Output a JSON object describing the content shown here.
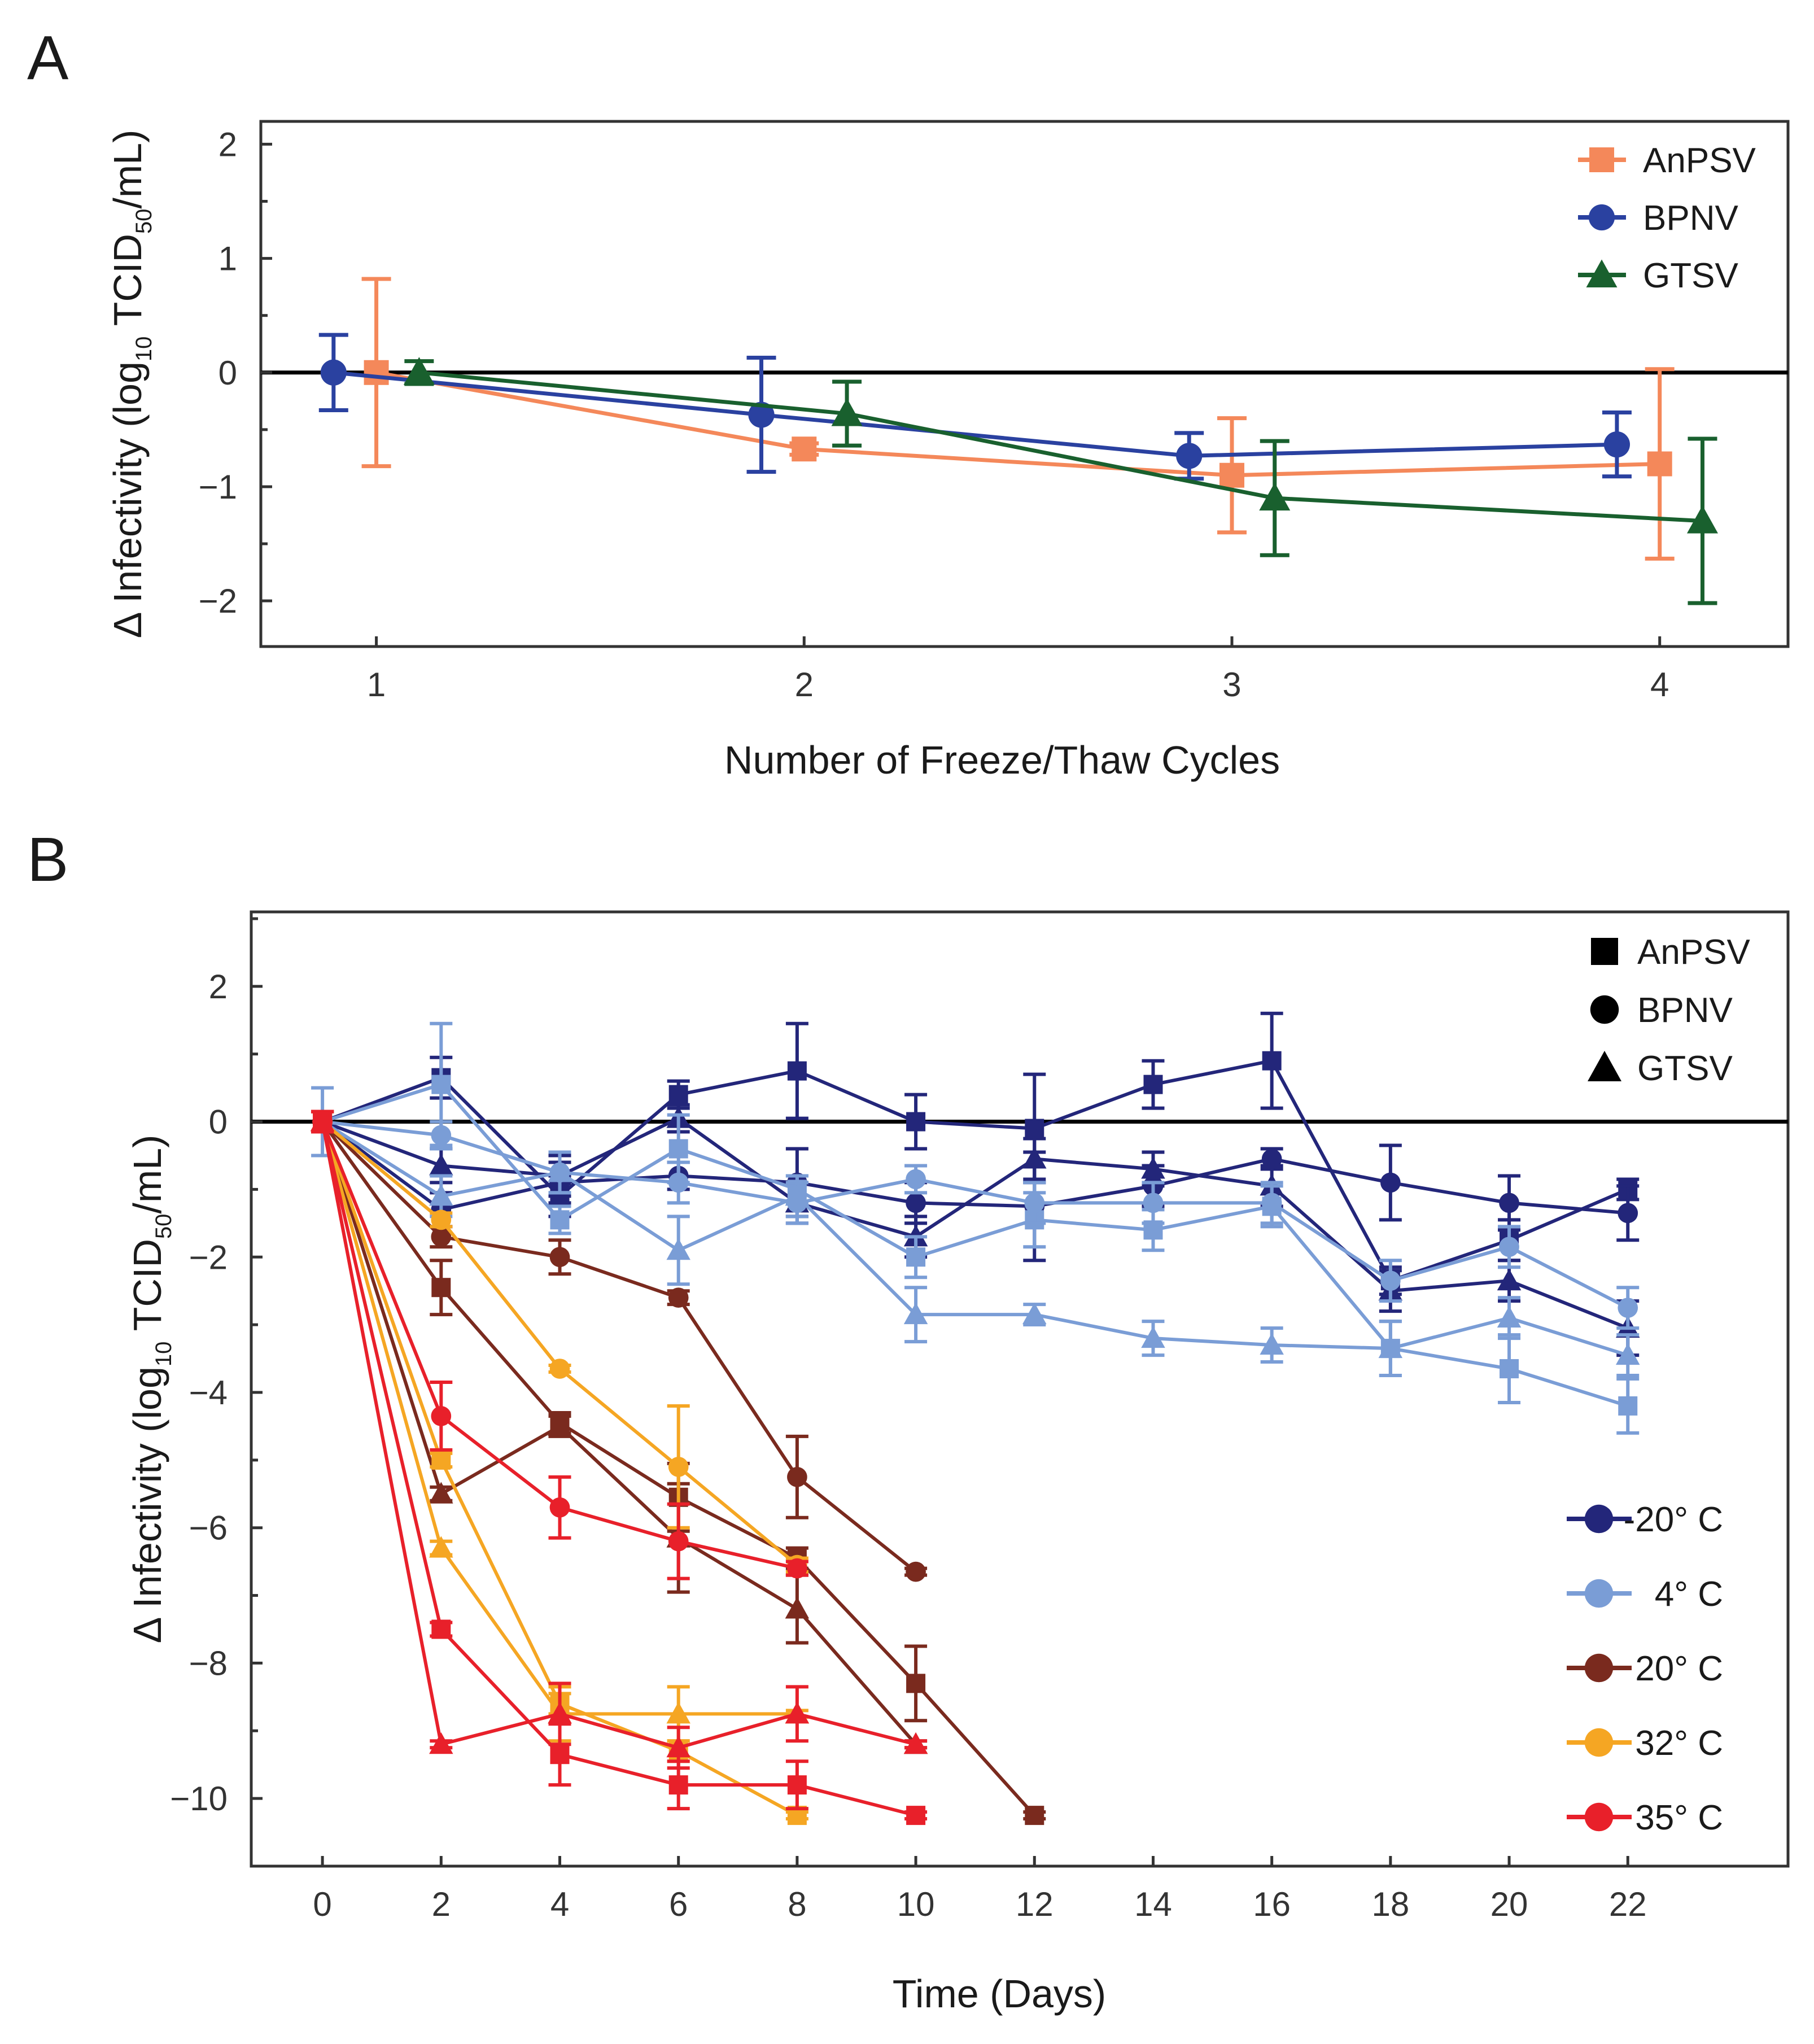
{
  "chart_data": [
    {
      "panel": "A",
      "type": "line",
      "title": "",
      "xlabel": "Number of Freeze/Thaw Cycles",
      "ylabel": "Δ Infectivity (log10 TCID50/mL)",
      "ylabel_parts": {
        "a": "Δ Infectivity (log",
        "sub1": "10",
        "b": " TCID",
        "sub2": "50",
        "c": "/mL)"
      },
      "x_ticks": [
        "1",
        "2",
        "3",
        "4"
      ],
      "y_ticks": [
        "2",
        "1",
        "0",
        "−1",
        "−2"
      ],
      "xlim": [
        0.73,
        4.3
      ],
      "ylim": [
        -2.4,
        2.2
      ],
      "legend": [
        "AnPSV",
        "BPNV",
        "GTSV"
      ],
      "series": [
        {
          "name": "AnPSV",
          "marker": "square",
          "color": "#f4885a",
          "offset": 0.0,
          "x": [
            1,
            2,
            3,
            4
          ],
          "y": [
            0,
            -0.67,
            -0.9,
            -0.8
          ],
          "err": [
            0.82,
            0.05,
            0.5,
            0.83
          ]
        },
        {
          "name": "BPNV",
          "marker": "circle",
          "color": "#2a41a0",
          "offset": -0.1,
          "x": [
            1,
            2,
            3,
            4
          ],
          "y": [
            0,
            -0.37,
            -0.73,
            -0.63
          ],
          "err": [
            0.33,
            0.5,
            0.2,
            0.28
          ]
        },
        {
          "name": "GTSV",
          "marker": "triangle",
          "color": "#19602e",
          "offset": 0.1,
          "x": [
            1,
            2,
            3,
            4
          ],
          "y": [
            0,
            -0.36,
            -1.1,
            -1.3
          ],
          "err": [
            0.1,
            0.28,
            0.5,
            0.72
          ]
        }
      ]
    },
    {
      "panel": "B",
      "type": "line",
      "title": "",
      "xlabel": "Time (Days)",
      "ylabel": "Δ Infectivity (log10 TCID50/mL)",
      "ylabel_parts": {
        "a": "Δ Infectivity (log",
        "sub1": "10",
        "b": " TCID",
        "sub2": "50",
        "c": "/mL)"
      },
      "x_ticks": [
        "0",
        "2",
        "4",
        "6",
        "8",
        "10",
        "12",
        "14",
        "16",
        "18",
        "20",
        "22"
      ],
      "y_ticks": [
        "2",
        "0",
        "−2",
        "−4",
        "−6",
        "−8",
        "−10"
      ],
      "xlim": [
        -1.2,
        24.7
      ],
      "ylim": [
        -11.0,
        3.1
      ],
      "legend_markers": [
        "AnPSV",
        "BPNV",
        "GTSV"
      ],
      "legend_temps": [
        {
          "label": "-20° C",
          "color": "#23267a"
        },
        {
          "label": "4° C",
          "color": "#7a9dd6"
        },
        {
          "label": "20° C",
          "color": "#7a2a1e"
        },
        {
          "label": "32° C",
          "color": "#f5a623"
        },
        {
          "label": "35° C",
          "color": "#e8202a"
        }
      ],
      "series": [
        {
          "name": "AnPSV -20° C",
          "marker": "square",
          "color": "#23267a",
          "x": [
            0,
            2,
            4,
            6,
            8,
            10,
            12,
            14,
            16,
            18,
            20,
            22
          ],
          "y": [
            0,
            0.65,
            -1.1,
            0.4,
            0.75,
            0,
            -0.1,
            0.55,
            0.9,
            -2.35,
            -1.75,
            -1.0
          ],
          "err": [
            0.15,
            0.3,
            0.3,
            0.2,
            0.7,
            0.4,
            0.8,
            0.35,
            0.7,
            0.2,
            0.3,
            0.15
          ]
        },
        {
          "name": "BPNV -20° C",
          "marker": "circle",
          "color": "#23267a",
          "x": [
            0,
            2,
            4,
            6,
            8,
            10,
            12,
            14,
            16,
            18,
            20,
            22
          ],
          "y": [
            0,
            -1.3,
            -0.9,
            -0.8,
            -0.9,
            -1.2,
            -1.25,
            -0.95,
            -0.55,
            -0.9,
            -1.2,
            -1.35
          ],
          "err": [
            0.15,
            0.25,
            0.3,
            0.2,
            0.5,
            0.3,
            0.8,
            0.3,
            0.15,
            0.55,
            0.4,
            0.4
          ]
        },
        {
          "name": "GTSV -20° C",
          "marker": "triangle",
          "color": "#23267a",
          "x": [
            0,
            2,
            4,
            6,
            8,
            10,
            12,
            14,
            16,
            18,
            20,
            22
          ],
          "y": [
            0,
            -0.65,
            -0.8,
            0.05,
            -1.2,
            -1.7,
            -0.55,
            -0.7,
            -0.95,
            -2.5,
            -2.35,
            -3.05
          ],
          "err": [
            0.15,
            0.25,
            0.3,
            0.2,
            0.3,
            0.3,
            0.3,
            0.25,
            0.3,
            0.3,
            0.3,
            0.4
          ]
        },
        {
          "name": "AnPSV 4° C",
          "marker": "square",
          "color": "#7a9dd6",
          "x": [
            0,
            2,
            4,
            6,
            8,
            10,
            12,
            14,
            16,
            18,
            20,
            22
          ],
          "y": [
            0,
            0.55,
            -1.45,
            -0.4,
            -1.0,
            -2.0,
            -1.45,
            -1.6,
            -1.25,
            -3.35,
            -3.65,
            -4.2
          ],
          "err": [
            0.5,
            0.9,
            0.2,
            0.5,
            0.2,
            0.3,
            0.4,
            0.3,
            0.3,
            0.4,
            0.5,
            0.4
          ]
        },
        {
          "name": "BPNV 4° C",
          "marker": "circle",
          "color": "#7a9dd6",
          "x": [
            0,
            2,
            4,
            6,
            8,
            10,
            12,
            14,
            16,
            18,
            20,
            22
          ],
          "y": [
            0,
            -0.2,
            -0.75,
            -0.9,
            -1.2,
            -0.85,
            -1.2,
            -1.2,
            -1.2,
            -2.35,
            -1.85,
            -2.75
          ],
          "err": [
            0.15,
            0.2,
            0.3,
            0.3,
            0.3,
            0.2,
            0.3,
            0.3,
            0.3,
            0.3,
            0.3,
            0.3
          ]
        },
        {
          "name": "GTSV 4° C",
          "marker": "triangle",
          "color": "#7a9dd6",
          "x": [
            0,
            2,
            4,
            6,
            8,
            10,
            12,
            14,
            16,
            18,
            20,
            22
          ],
          "y": [
            0,
            -1.1,
            -0.75,
            -1.9,
            -1.1,
            -2.85,
            -2.85,
            -3.2,
            -3.3,
            -3.35,
            -2.9,
            -3.45
          ],
          "err": [
            0.15,
            0.3,
            0.3,
            0.5,
            0.3,
            0.4,
            0.15,
            0.25,
            0.25,
            0.4,
            0.3,
            0.3
          ]
        },
        {
          "name": "AnPSV 20° C",
          "marker": "square",
          "color": "#7a2a1e",
          "x": [
            0,
            2,
            4,
            6,
            8,
            10,
            12
          ],
          "y": [
            0,
            -2.45,
            -4.45,
            -5.55,
            -6.45,
            -8.3,
            -10.25
          ],
          "err": [
            0.15,
            0.4,
            0.15,
            0.5,
            0.15,
            0.55,
            0.05
          ]
        },
        {
          "name": "BPNV 20° C",
          "marker": "circle",
          "color": "#7a2a1e",
          "x": [
            0,
            2,
            4,
            6,
            8,
            10
          ],
          "y": [
            0,
            -1.7,
            -2.0,
            -2.6,
            -5.25,
            -6.65
          ],
          "err": [
            0.15,
            0.15,
            0.25,
            0.1,
            0.6,
            0.05
          ]
        },
        {
          "name": "GTSV 20° C",
          "marker": "triangle",
          "color": "#7a2a1e",
          "x": [
            0,
            2,
            4,
            6,
            8,
            10
          ],
          "y": [
            0,
            -5.5,
            -4.5,
            -6.15,
            -7.2,
            -9.2
          ],
          "err": [
            0.15,
            0.1,
            0.15,
            0.8,
            0.5,
            0.05
          ]
        },
        {
          "name": "AnPSV 32° C",
          "marker": "square",
          "color": "#f5a623",
          "x": [
            0,
            2,
            4,
            6,
            8
          ],
          "y": [
            0,
            -5.0,
            -8.6,
            -9.3,
            -10.25
          ],
          "err": [
            0.15,
            0.1,
            0.15,
            0.15,
            0.05
          ]
        },
        {
          "name": "BPNV 32° C",
          "marker": "circle",
          "color": "#f5a623",
          "x": [
            0,
            2,
            4,
            6,
            8
          ],
          "y": [
            0,
            -1.45,
            -3.65,
            -5.1,
            -6.55
          ],
          "err": [
            0.15,
            0.1,
            0.05,
            0.9,
            0.1
          ]
        },
        {
          "name": "GTSV 32° C",
          "marker": "triangle",
          "color": "#f5a623",
          "x": [
            0,
            2,
            4,
            6,
            8
          ],
          "y": [
            0,
            -6.3,
            -8.75,
            -8.75,
            -8.75
          ],
          "err": [
            0.15,
            0.1,
            0.4,
            0.4,
            0.05
          ]
        },
        {
          "name": "AnPSV 35° C",
          "marker": "square",
          "color": "#e8202a",
          "x": [
            0,
            2,
            4,
            6,
            8,
            10
          ],
          "y": [
            0,
            -7.5,
            -9.35,
            -9.8,
            -9.8,
            -10.25
          ],
          "err": [
            0.15,
            0.1,
            0.45,
            0.35,
            0.35,
            0.05
          ]
        },
        {
          "name": "BPNV 35° C",
          "marker": "circle",
          "color": "#e8202a",
          "x": [
            0,
            2,
            4,
            6,
            8
          ],
          "y": [
            0,
            -4.35,
            -5.7,
            -6.2,
            -6.6
          ],
          "err": [
            0.15,
            0.5,
            0.45,
            0.55,
            0.1
          ]
        },
        {
          "name": "GTSV 35° C",
          "marker": "triangle",
          "color": "#e8202a",
          "x": [
            0,
            2,
            4,
            6,
            8,
            10
          ],
          "y": [
            0,
            -9.2,
            -8.75,
            -9.25,
            -8.75,
            -9.2
          ],
          "err": [
            0.15,
            0.05,
            0.45,
            0.3,
            0.4,
            0.05
          ]
        }
      ]
    }
  ]
}
